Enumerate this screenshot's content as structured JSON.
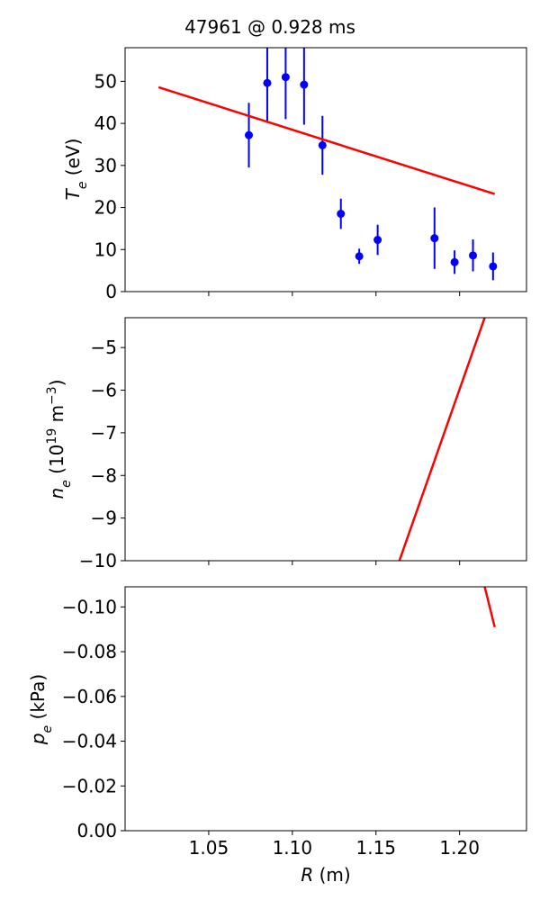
{
  "title": "47961 @ 0.928 ms",
  "colors": {
    "fit": "#ff0000",
    "data": "#0000ff",
    "axes": "#000000"
  },
  "chart_data": [
    {
      "type": "scatter",
      "ylabel_main": "T",
      "ylabel_sub": "e",
      "ylabel_rest": " (eV)",
      "xlim": [
        1.0,
        1.24
      ],
      "ylim": [
        0,
        58
      ],
      "yticks": [
        0,
        10,
        20,
        30,
        40,
        50
      ],
      "xticks": [
        1.05,
        1.1,
        1.15,
        1.2
      ],
      "series": [
        {
          "kind": "errorbar",
          "points": [
            {
              "x": 1.074,
              "y": 37.2,
              "err": 7.7
            },
            {
              "x": 1.085,
              "y": 49.6,
              "err": 9.5
            },
            {
              "x": 1.096,
              "y": 51.0,
              "err": 10.0
            },
            {
              "x": 1.107,
              "y": 49.2,
              "err": 9.5
            },
            {
              "x": 1.118,
              "y": 34.8,
              "err": 7.0
            },
            {
              "x": 1.129,
              "y": 18.5,
              "err": 3.6
            },
            {
              "x": 1.14,
              "y": 8.4,
              "err": 1.8
            },
            {
              "x": 1.151,
              "y": 12.3,
              "err": 3.6
            },
            {
              "x": 1.185,
              "y": 12.7,
              "err": 7.3
            },
            {
              "x": 1.197,
              "y": 7.0,
              "err": 2.8
            },
            {
              "x": 1.208,
              "y": 8.6,
              "err": 3.8
            },
            {
              "x": 1.22,
              "y": 6.0,
              "err": 3.3
            }
          ]
        },
        {
          "kind": "line",
          "points": [
            {
              "x": 1.02,
              "y": 48.6
            },
            {
              "x": 1.221,
              "y": 23.2
            }
          ]
        }
      ]
    },
    {
      "type": "line",
      "ylabel_main": "n",
      "ylabel_sub": "e",
      "ylabel_rest": " (10",
      "ylabel_sup": "19",
      "ylabel_rest2": " m",
      "ylabel_sup2": "−3",
      "ylabel_end": ")",
      "xlim": [
        1.0,
        1.24
      ],
      "ylim": [
        -10,
        -4.3
      ],
      "yticks": [
        -10,
        -9,
        -8,
        -7,
        -6,
        -5
      ],
      "ytick_labels": [
        "−10",
        "−9",
        "−8",
        "−7",
        "−6",
        "−5"
      ],
      "xticks": [
        1.05,
        1.1,
        1.15,
        1.2
      ],
      "series": [
        {
          "kind": "line",
          "points": [
            {
              "x": 1.164,
              "y": -10.0
            },
            {
              "x": 1.215,
              "y": -4.3
            }
          ]
        }
      ]
    },
    {
      "type": "line",
      "ylabel_main": "p",
      "ylabel_sub": "e",
      "ylabel_rest": " (kPa)",
      "xlabel_main": "R",
      "xlabel_rest": " (m)",
      "xlim": [
        1.0,
        1.24
      ],
      "ylim": [
        0,
        -0.109
      ],
      "yticks": [
        0,
        -0.02,
        -0.04,
        -0.06,
        -0.08,
        -0.1
      ],
      "ytick_labels": [
        "0.00",
        "−0.02",
        "−0.04",
        "−0.06",
        "−0.08",
        "−0.10"
      ],
      "xticks": [
        1.05,
        1.1,
        1.15,
        1.2
      ],
      "xtick_labels": [
        "1.05",
        "1.10",
        "1.15",
        "1.20"
      ],
      "series": [
        {
          "kind": "line",
          "points": [
            {
              "x": 1.215,
              "y": -0.109
            },
            {
              "x": 1.221,
              "y": -0.091
            }
          ]
        }
      ]
    }
  ]
}
